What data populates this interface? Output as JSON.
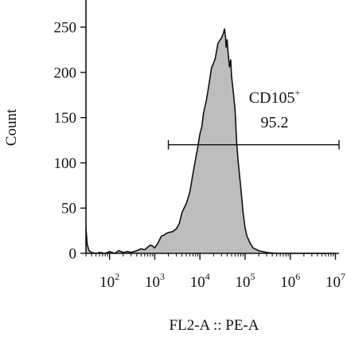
{
  "chart_data": {
    "type": "area",
    "title": "",
    "xlabel": "FL2-A :: PE-A",
    "ylabel": "Count",
    "x_scale": "log",
    "xlim": [
      30,
      12000000
    ],
    "ylim": [
      0,
      280
    ],
    "x_ticks": [
      {
        "value": 100,
        "base": "10",
        "exp": "2"
      },
      {
        "value": 1000,
        "base": "10",
        "exp": "3"
      },
      {
        "value": 10000,
        "base": "10",
        "exp": "4"
      },
      {
        "value": 100000,
        "base": "10",
        "exp": "5"
      },
      {
        "value": 1000000,
        "base": "10",
        "exp": "6"
      },
      {
        "value": 10000000,
        "base": "10",
        "exp": "7"
      }
    ],
    "y_ticks": [
      0,
      50,
      100,
      150,
      200,
      250
    ],
    "grid": false,
    "fill_color": "#bdbdbd",
    "line_color": "#111111",
    "series": [
      {
        "x": [
          30,
          32,
          35,
          40,
          50,
          60,
          80,
          100,
          130,
          160,
          200,
          250,
          300,
          400,
          500,
          600,
          700,
          800,
          900,
          1000,
          1200,
          1400,
          1600,
          1800,
          2000,
          2500,
          3000,
          3500,
          4000,
          5000,
          6000,
          7000,
          8000,
          9000,
          10000,
          11000,
          12000,
          14000,
          16000,
          18000,
          20000,
          22000,
          25000,
          28000,
          30000,
          33000,
          35000,
          37000,
          38000,
          40000,
          42000,
          45000,
          48000,
          50000,
          55000,
          60000,
          65000,
          70000,
          80000,
          90000,
          100000,
          110000,
          130000,
          150000,
          200000,
          300000,
          500000,
          800000,
          1000000,
          2000000,
          10000000
        ],
        "y": [
          28,
          10,
          3,
          1,
          0,
          1,
          0,
          2,
          0,
          3,
          1,
          2,
          1,
          3,
          5,
          4,
          7,
          9,
          8,
          6,
          12,
          19,
          20,
          22,
          23,
          24,
          27,
          33,
          45,
          55,
          68,
          88,
          104,
          118,
          132,
          140,
          155,
          170,
          188,
          205,
          210,
          216,
          232,
          236,
          238,
          243,
          248,
          238,
          228,
          236,
          222,
          206,
          214,
          196,
          178,
          158,
          122,
          102,
          73,
          45,
          28,
          19,
          11,
          6,
          3,
          1,
          0,
          0,
          0,
          0,
          0
        ]
      }
    ],
    "gate": {
      "label_name": "CD105",
      "label_sup": "+",
      "value": "95.2",
      "x_start": 2000,
      "x_end": 12000000,
      "y": 120
    }
  }
}
